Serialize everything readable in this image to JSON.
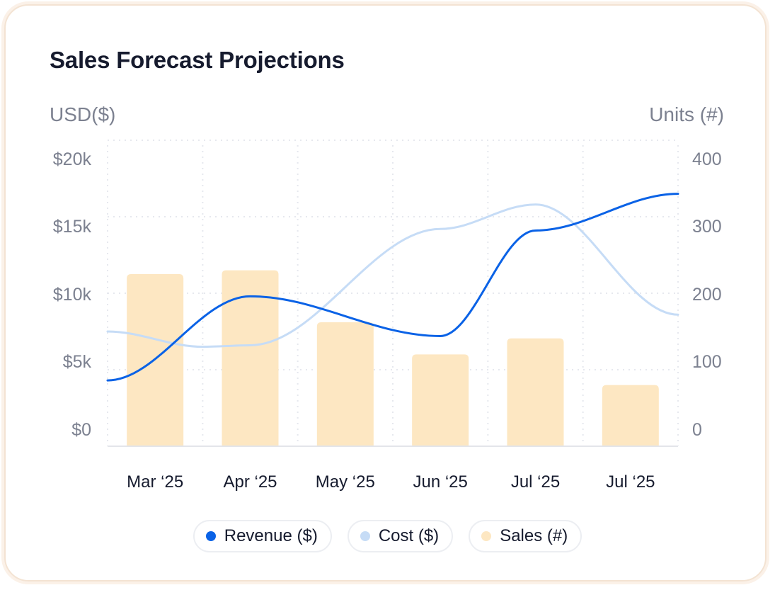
{
  "card": {
    "title": "Sales Forecast Projections"
  },
  "colors": {
    "revenue": "#0a62e6",
    "cost": "#c6dcf6",
    "sales": "#fde7c2",
    "grid": "#e6e8ee",
    "axis_text": "#7c8190",
    "category_text": "#161b2e"
  },
  "chart_data": {
    "type": "bar",
    "title": "Sales Forecast Projections",
    "categories": [
      "Mar ‘25",
      "Apr ‘25",
      "May ‘25",
      "Jun ‘25",
      "Jul ‘25",
      "Jul ‘25"
    ],
    "left_axis": {
      "label": "USD($)",
      "range": [
        0,
        20000
      ],
      "ticks": [
        0,
        5000,
        10000,
        15000,
        20000
      ],
      "tick_labels": [
        "$0",
        "$5k",
        "$10k",
        "$15k",
        "$20k"
      ]
    },
    "right_axis": {
      "label": "Units (#)",
      "range": [
        0,
        400
      ],
      "ticks": [
        0,
        100,
        200,
        300,
        400
      ],
      "tick_labels": [
        "0",
        "100",
        "200",
        "300",
        "400"
      ]
    },
    "series": [
      {
        "name": "Sales (#)",
        "type": "bar",
        "axis": "right",
        "color": "#fde7c2",
        "values": [
          225,
          230,
          162,
          120,
          141,
          80
        ]
      },
      {
        "name": "Cost ($)",
        "type": "line",
        "axis": "left",
        "color": "#c6dcf6",
        "x": [
          0,
          1,
          2,
          3,
          4,
          5
        ],
        "points": [
          [
            -0.5,
            7500
          ],
          [
            0.5,
            6500
          ],
          [
            1.0,
            6600
          ],
          [
            3.0,
            14200
          ],
          [
            4.0,
            15800
          ],
          [
            5.5,
            8600
          ]
        ]
      },
      {
        "name": "Revenue ($)",
        "type": "line",
        "axis": "left",
        "color": "#0a62e6",
        "points": [
          [
            -0.5,
            4300
          ],
          [
            1.0,
            9800
          ],
          [
            3.0,
            7200
          ],
          [
            4.0,
            14100
          ],
          [
            5.5,
            16500
          ]
        ]
      }
    ],
    "grid": true,
    "legend": [
      "Revenue ($)",
      "Cost ($)",
      "Sales (#)"
    ],
    "legend_position": "bottom-center"
  }
}
